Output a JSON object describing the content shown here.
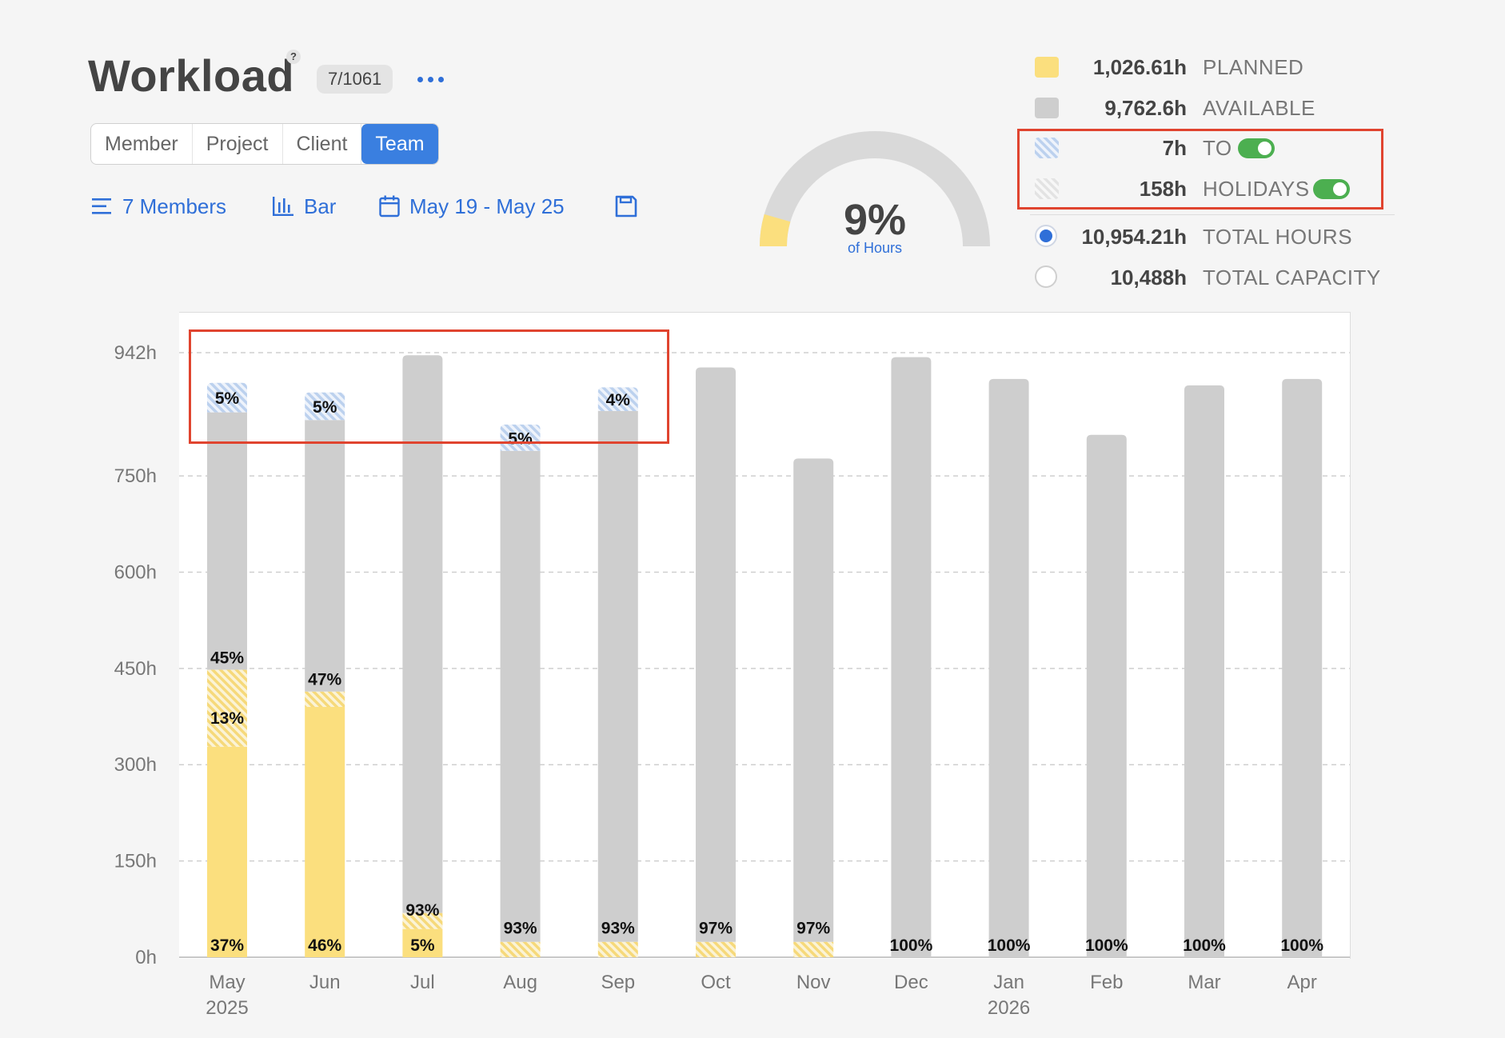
{
  "header": {
    "title": "Workload",
    "help": "?",
    "count_badge": "7/1061",
    "more": "..."
  },
  "view_tabs": [
    "Member",
    "Project",
    "Client",
    "Team"
  ],
  "active_tab": "Team",
  "toolbar": {
    "members_label": "7 Members",
    "chart_type_label": "Bar",
    "date_range_label": "May 19 - May 25"
  },
  "gauge": {
    "percent_label": "9%",
    "sub_label": "of Hours",
    "fraction": 0.09,
    "fill_color": "#fbdf7e",
    "track_color": "#d9d9d9"
  },
  "legend": [
    {
      "value": "1,026.61h",
      "label": "PLANNED",
      "swatch": "planned"
    },
    {
      "value": "9,762.6h",
      "label": "AVAILABLE",
      "swatch": "available"
    },
    {
      "value": "7h",
      "label": "TO",
      "swatch": "to",
      "toggle": true
    },
    {
      "value": "158h",
      "label": "HOLIDAYS",
      "swatch": "holidays",
      "toggle": true
    },
    {
      "value": "10,954.21h",
      "label": "TOTAL HOURS",
      "radio": "on"
    },
    {
      "value": "10,488h",
      "label": "TOTAL CAPACITY",
      "radio": "off"
    }
  ],
  "colors": {
    "accent": "#2f6fd8",
    "planned": "#fbdf7e",
    "available": "#cecece",
    "toggle_on": "#4caf50",
    "highlight": "#e0442f"
  },
  "chart_data": {
    "type": "bar",
    "stacked": true,
    "categories": [
      "May",
      "Jun",
      "Jul",
      "Aug",
      "Sep",
      "Oct",
      "Nov",
      "Dec",
      "Jan",
      "Feb",
      "Mar",
      "Apr"
    ],
    "year_labels": {
      "May": "2025",
      "Jan": "2026"
    },
    "y_ticks": [
      "0h",
      "150h",
      "300h",
      "450h",
      "600h",
      "750h",
      "942h"
    ],
    "y_tick_values": [
      0,
      150,
      300,
      450,
      600,
      750,
      942
    ],
    "ylim": [
      0,
      942
    ],
    "grid": true,
    "series": [
      {
        "name": "PLANNED",
        "color": "#fbdf7e",
        "values": [
          328,
          390,
          44,
          0,
          0,
          0,
          0,
          0,
          0,
          0,
          0,
          0
        ],
        "labels": [
          "37%",
          "46%",
          "5%",
          "",
          "",
          "",
          "",
          "",
          "",
          "",
          "",
          ""
        ]
      },
      {
        "name": "HOLIDAYS",
        "pattern": "holiday-hatch",
        "values": [
          120,
          24,
          25,
          24,
          24,
          24,
          24,
          0,
          0,
          0,
          0,
          0
        ],
        "labels": [
          "13%",
          "",
          "",
          "",
          "",
          "",
          "",
          "",
          "",
          "",
          "",
          ""
        ]
      },
      {
        "name": "AVAILABLE",
        "color": "#cecece",
        "values": [
          401,
          423,
          869,
          765,
          827,
          895,
          753,
          935,
          901,
          814,
          891,
          901
        ],
        "labels": [
          "45%",
          "47%",
          "93%",
          "93%",
          "93%",
          "97%",
          "97%",
          "100%",
          "100%",
          "100%",
          "100%",
          "100%"
        ]
      },
      {
        "name": "TO",
        "pattern": "to-hatch",
        "values": [
          46,
          43,
          0,
          41,
          37,
          0,
          0,
          0,
          0,
          0,
          0,
          0
        ],
        "labels": [
          "5%",
          "5%",
          "",
          "5%",
          "4%",
          "",
          "",
          "",
          "",
          "",
          "",
          ""
        ]
      }
    ]
  }
}
